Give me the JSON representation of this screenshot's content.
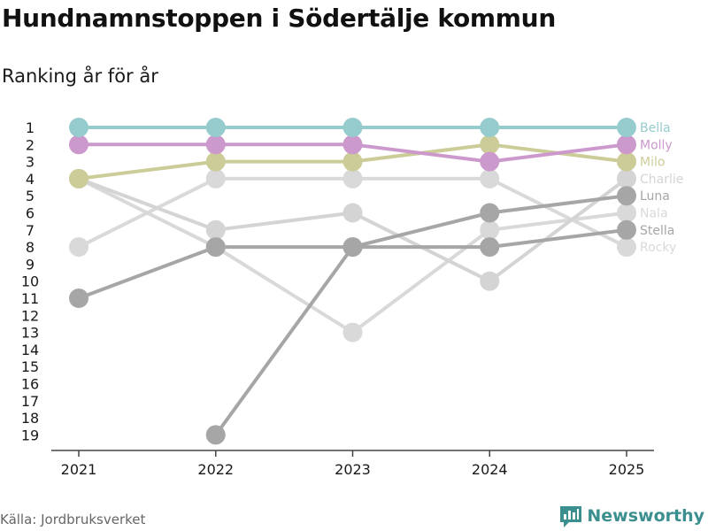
{
  "header": {
    "title": "Hundnamnstoppen i Södertälje kommun",
    "subtitle": "Ranking år för år"
  },
  "footer": {
    "source": "Källa: Jordbruksverket",
    "brand": "Newsworthy",
    "brand_icon": "bar-chart-icon"
  },
  "colors": {
    "Bella": "#96cccd",
    "Molly": "#cc99cc",
    "Milo": "#cccc99",
    "Charlie": "#d4d4d4",
    "Luna": "#a6a6a6",
    "Nala": "#d9d9d9",
    "Stella": "#a6a6a6",
    "Rocky": "#d9d9d9",
    "axis": "#444444",
    "brand": "#3c8f8f"
  },
  "chart_data": {
    "type": "line",
    "title": "Hundnamnstoppen i Södertälje kommun",
    "subtitle": "Ranking år för år",
    "x": [
      "2021",
      "2022",
      "2023",
      "2024",
      "2025"
    ],
    "y_ticks": [
      1,
      2,
      3,
      4,
      5,
      6,
      7,
      8,
      9,
      10,
      11,
      12,
      13,
      14,
      15,
      16,
      17,
      18,
      19
    ],
    "ylim": [
      1,
      19
    ],
    "y_inverted": true,
    "xlabel": "",
    "ylabel": "",
    "series": [
      {
        "name": "Rocky",
        "values": [
          8,
          4,
          4,
          4,
          8
        ]
      },
      {
        "name": "Nala",
        "values": [
          4,
          8,
          13,
          7,
          6
        ]
      },
      {
        "name": "Charlie",
        "values": [
          4,
          7,
          6,
          10,
          4
        ]
      },
      {
        "name": "Stella",
        "values": [
          11,
          8,
          8,
          8,
          7
        ]
      },
      {
        "name": "Luna",
        "values": [
          null,
          19,
          8,
          6,
          5
        ]
      },
      {
        "name": "Milo",
        "values": [
          4,
          3,
          3,
          2,
          3
        ]
      },
      {
        "name": "Molly",
        "values": [
          2,
          2,
          2,
          3,
          2
        ]
      },
      {
        "name": "Bella",
        "values": [
          1,
          1,
          1,
          1,
          1
        ]
      }
    ],
    "end_labels": [
      "Bella",
      "Molly",
      "Milo",
      "Charlie",
      "Luna",
      "Nala",
      "Stella",
      "Rocky"
    ]
  }
}
